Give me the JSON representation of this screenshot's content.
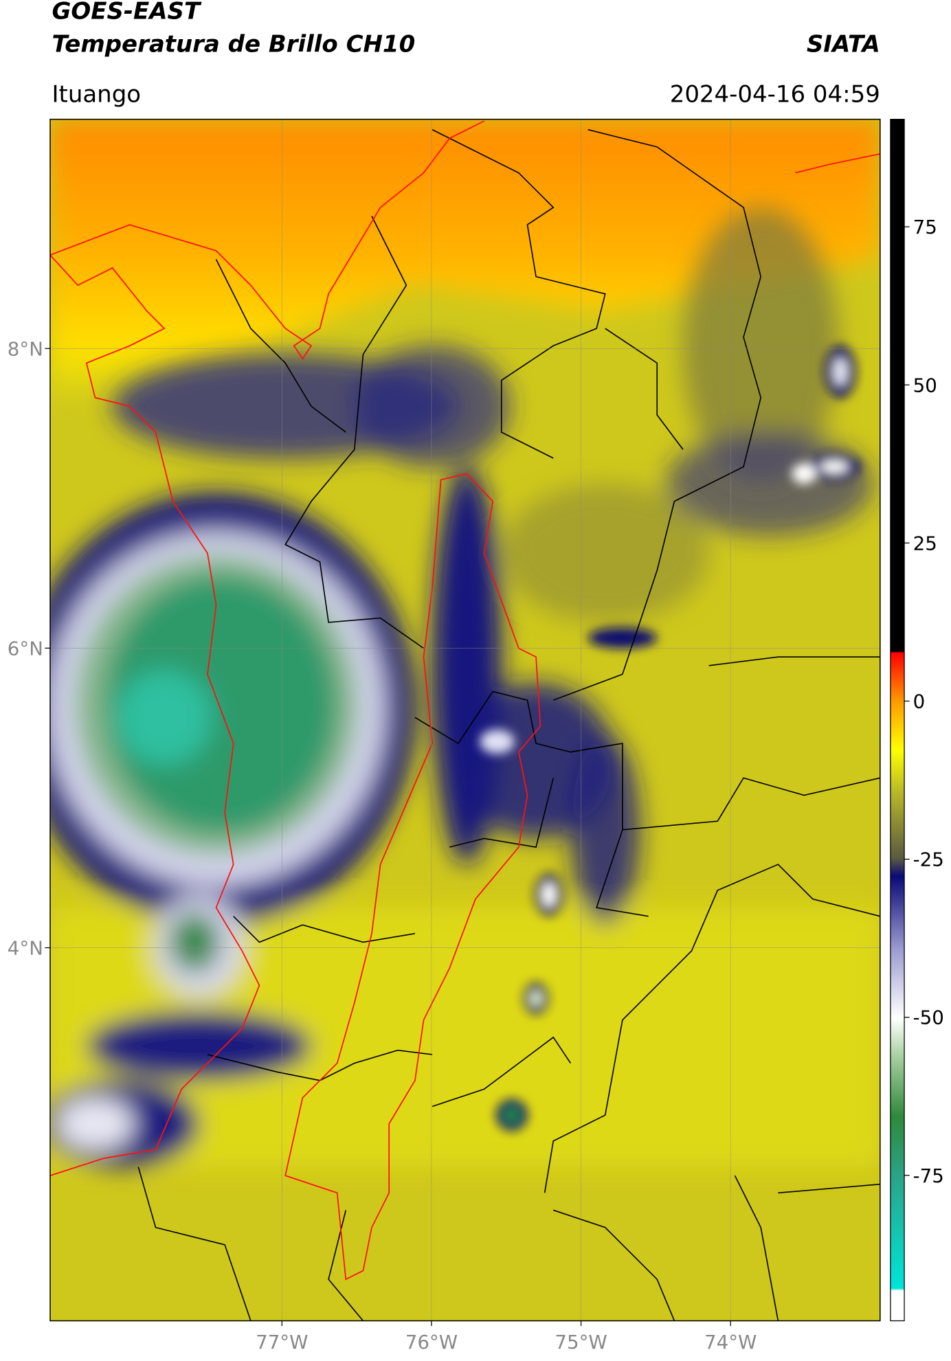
{
  "header": {
    "title": "GOES-EAST",
    "subtitle": "Temperatura de Brillo CH10",
    "region": "Ituango",
    "source": "SIATA",
    "timestamp": "2024-04-16 04:59"
  },
  "map": {
    "xlim": [
      -78.55,
      -73.0
    ],
    "ylim": [
      1.51,
      9.53
    ],
    "xticks": [
      {
        "value": -77,
        "label": "77°W"
      },
      {
        "value": -76,
        "label": "76°W"
      },
      {
        "value": -75,
        "label": "75°W"
      },
      {
        "value": -74,
        "label": "74°W"
      }
    ],
    "yticks": [
      {
        "value": 8,
        "label": "8°N"
      },
      {
        "value": 6,
        "label": "6°N"
      },
      {
        "value": 4,
        "label": "4°N"
      }
    ]
  },
  "colorbar": {
    "lim": [
      -98,
      92
    ],
    "ticks": [
      75,
      50,
      25,
      0,
      -25,
      -50,
      -75
    ]
  }
}
